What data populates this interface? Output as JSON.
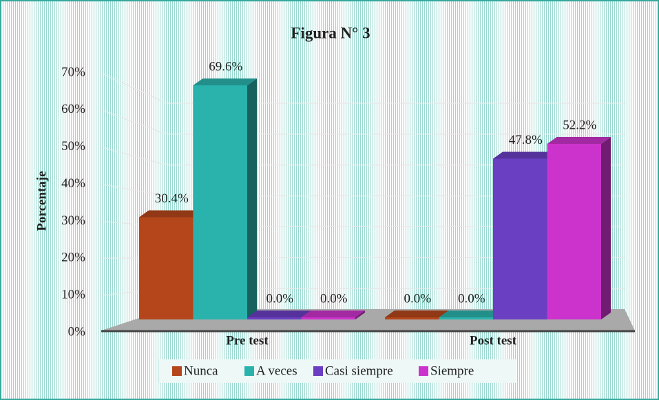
{
  "chart_data": {
    "type": "bar3d",
    "title": "Figura N° 3",
    "y_label": "Porcentaje",
    "categories": [
      "Pre test",
      "Post test"
    ],
    "series": [
      {
        "name": "Nunca",
        "color": "#b5461c",
        "values": [
          30.4,
          0
        ],
        "value_labels": [
          "30.4%",
          "0.0%"
        ]
      },
      {
        "name": "A veces",
        "color": "#2ab3ad",
        "values": [
          69.6,
          0
        ],
        "value_labels": [
          "69.6%",
          "0.0%"
        ]
      },
      {
        "name": "Casi siempre",
        "color": "#6a3fc2",
        "values": [
          0,
          47.8
        ],
        "value_labels": [
          "0.0%",
          "47.8%"
        ]
      },
      {
        "name": "Siempre",
        "color": "#cc33cc",
        "values": [
          0,
          52.2
        ],
        "value_labels": [
          "0.0%",
          "52.2%"
        ]
      }
    ],
    "ylim": [
      0,
      70
    ],
    "yticks": [
      {
        "value": 0,
        "label": "0%"
      },
      {
        "value": 10,
        "label": "10%"
      },
      {
        "value": 20,
        "label": "20%"
      },
      {
        "value": 30,
        "label": "30%"
      },
      {
        "value": 40,
        "label": "40%"
      },
      {
        "value": 50,
        "label": "50%"
      },
      {
        "value": 60,
        "label": "60%"
      },
      {
        "value": 70,
        "label": "70%"
      }
    ],
    "grid": true,
    "legend": "bottom"
  }
}
